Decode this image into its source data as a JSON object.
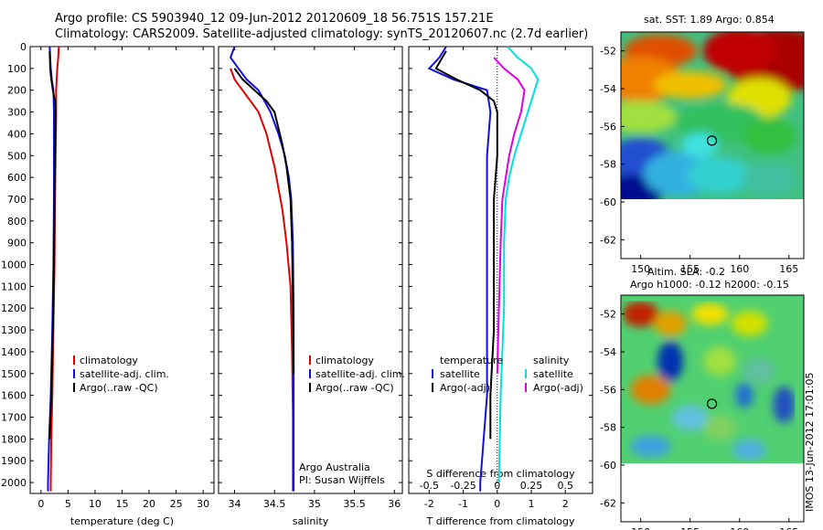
{
  "header": {
    "line1": "Argo profile: CS 5903940_12 09-Jun-2012 20120609_18 56.751S 157.21E",
    "line2": "Climatology: CARS2009. Satellite-adjusted climatology: synTS_20120607.nc (2.7d earlier)"
  },
  "colors": {
    "climatology": "#e00000",
    "satellite": "#1010e0",
    "argo": "#000000",
    "sat_salinity": "#00e0e0",
    "argo_salinity_diff": "#e000e0"
  },
  "chart_data": [
    {
      "type": "line",
      "panel": "temperature",
      "xlabel": "temperature (deg C)",
      "ylabel": "",
      "xlim": [
        -2,
        32
      ],
      "ylim": [
        2050,
        0
      ],
      "xticks": [
        0,
        5,
        10,
        15,
        20,
        25,
        30
      ],
      "yticks": [
        0,
        100,
        200,
        300,
        400,
        500,
        600,
        700,
        800,
        900,
        1000,
        1100,
        1200,
        1300,
        1400,
        1500,
        1600,
        1700,
        1800,
        1900,
        2000
      ],
      "legend": [
        "climatology",
        "satellite-adj. clim.",
        "Argo(..raw -QC)"
      ],
      "legend_location": "center-right",
      "series": [
        {
          "name": "climatology",
          "color": "#e00000",
          "points": [
            [
              3.3,
              0
            ],
            [
              3.2,
              50
            ],
            [
              3.0,
              100
            ],
            [
              2.9,
              150
            ],
            [
              2.8,
              200
            ],
            [
              2.8,
              300
            ],
            [
              2.7,
              500
            ],
            [
              2.6,
              700
            ],
            [
              2.5,
              1000
            ],
            [
              2.3,
              1300
            ],
            [
              2.1,
              1600
            ],
            [
              1.9,
              1800
            ],
            [
              1.8,
              2000
            ],
            [
              1.8,
              2040
            ]
          ]
        },
        {
          "name": "satellite-adj. clim.",
          "color": "#1010e0",
          "points": [
            [
              1.6,
              0
            ],
            [
              1.7,
              50
            ],
            [
              1.8,
              100
            ],
            [
              2.0,
              150
            ],
            [
              2.3,
              200
            ],
            [
              2.4,
              300
            ],
            [
              2.4,
              500
            ],
            [
              2.4,
              700
            ],
            [
              2.3,
              1000
            ],
            [
              2.1,
              1300
            ],
            [
              1.8,
              1600
            ],
            [
              1.5,
              1800
            ],
            [
              1.3,
              2000
            ],
            [
              1.3,
              2040
            ]
          ]
        },
        {
          "name": "Argo(..raw -QC)",
          "color": "#000000",
          "points": [
            [
              1.6,
              20
            ],
            [
              1.7,
              100
            ],
            [
              1.9,
              150
            ],
            [
              2.2,
              200
            ],
            [
              2.6,
              250
            ],
            [
              2.7,
              300
            ],
            [
              2.6,
              500
            ],
            [
              2.5,
              700
            ],
            [
              2.4,
              1000
            ],
            [
              2.2,
              1300
            ],
            [
              1.9,
              1600
            ],
            [
              1.6,
              1800
            ]
          ]
        }
      ]
    },
    {
      "type": "line",
      "panel": "salinity",
      "xlabel": "salinity",
      "ylabel": "",
      "xlim": [
        33.8,
        36.1
      ],
      "ylim": [
        2050,
        0
      ],
      "xticks": [
        34,
        34.5,
        35,
        35.5,
        36
      ],
      "legend": [
        "climatology",
        "satellite-adj. clim.",
        "Argo(..raw -QC)"
      ],
      "legend_location": "center-right",
      "annotations": [
        "Argo Australia",
        "PI: Susan Wijffels"
      ],
      "series": [
        {
          "name": "climatology",
          "color": "#e00000",
          "points": [
            [
              33.95,
              100
            ],
            [
              34.0,
              150
            ],
            [
              34.1,
              200
            ],
            [
              34.2,
              250
            ],
            [
              34.3,
              300
            ],
            [
              34.4,
              400
            ],
            [
              34.5,
              550
            ],
            [
              34.55,
              650
            ],
            [
              34.6,
              750
            ],
            [
              34.65,
              900
            ],
            [
              34.7,
              1100
            ],
            [
              34.72,
              1400
            ],
            [
              34.73,
              1700
            ],
            [
              34.73,
              2040
            ]
          ]
        },
        {
          "name": "satellite-adj. clim.",
          "color": "#1010e0",
          "points": [
            [
              34.0,
              0
            ],
            [
              33.95,
              50
            ],
            [
              34.05,
              100
            ],
            [
              34.15,
              150
            ],
            [
              34.3,
              200
            ],
            [
              34.45,
              300
            ],
            [
              34.55,
              400
            ],
            [
              34.63,
              500
            ],
            [
              34.68,
              600
            ],
            [
              34.71,
              700
            ],
            [
              34.73,
              900
            ],
            [
              34.74,
              1200
            ],
            [
              34.74,
              1600
            ],
            [
              34.74,
              1900
            ],
            [
              34.74,
              2040
            ]
          ]
        },
        {
          "name": "Argo(..raw -QC)",
          "color": "#000000",
          "points": [
            [
              34.0,
              100
            ],
            [
              34.1,
              150
            ],
            [
              34.25,
              200
            ],
            [
              34.4,
              250
            ],
            [
              34.5,
              300
            ],
            [
              34.6,
              450
            ],
            [
              34.65,
              550
            ],
            [
              34.7,
              700
            ],
            [
              34.72,
              900
            ],
            [
              34.73,
              1200
            ],
            [
              34.74,
              1500
            ]
          ]
        }
      ]
    },
    {
      "type": "line",
      "panel": "difference",
      "xlabel": "T difference from climatology",
      "xlabel2": "S difference from climatology",
      "xlim": [
        -2.6,
        2.8
      ],
      "ylim": [
        2050,
        0
      ],
      "xticks": [
        -2,
        -1,
        0,
        1,
        2
      ],
      "xticks2": [
        "-0.5",
        "-0.25",
        "0",
        "0.25",
        "0.5"
      ],
      "legend_groups": [
        {
          "title": "temperature",
          "items": [
            "satellite",
            "Argo(-adj)"
          ]
        },
        {
          "title": "salinity",
          "items": [
            "satellite",
            "Argo(-adj)"
          ]
        }
      ],
      "series": [
        {
          "name": "temperature satellite",
          "color": "#1010e0",
          "points": [
            [
              -1.5,
              0
            ],
            [
              -1.7,
              50
            ],
            [
              -2.0,
              100
            ],
            [
              -1.3,
              150
            ],
            [
              -0.3,
              200
            ],
            [
              -0.2,
              300
            ],
            [
              -0.3,
              500
            ],
            [
              -0.3,
              700
            ],
            [
              -0.3,
              1000
            ],
            [
              -0.3,
              1300
            ],
            [
              -0.3,
              1600
            ],
            [
              -0.4,
              1800
            ],
            [
              -0.5,
              2000
            ],
            [
              -0.5,
              2040
            ]
          ]
        },
        {
          "name": "temperature Argo(-adj)",
          "color": "#000000",
          "points": [
            [
              -1.5,
              20
            ],
            [
              -1.8,
              100
            ],
            [
              -1.2,
              150
            ],
            [
              -0.5,
              200
            ],
            [
              -0.1,
              250
            ],
            [
              0.0,
              300
            ],
            [
              0.0,
              500
            ],
            [
              -0.1,
              700
            ],
            [
              -0.1,
              1000
            ],
            [
              -0.1,
              1300
            ],
            [
              -0.2,
              1600
            ],
            [
              -0.2,
              1800
            ]
          ]
        },
        {
          "name": "salinity satellite",
          "color": "#00e0e0",
          "points": [
            [
              0.3,
              0
            ],
            [
              0.6,
              50
            ],
            [
              1.0,
              100
            ],
            [
              1.2,
              150
            ],
            [
              1.1,
              200
            ],
            [
              0.9,
              300
            ],
            [
              0.7,
              400
            ],
            [
              0.5,
              500
            ],
            [
              0.35,
              600
            ],
            [
              0.25,
              700
            ],
            [
              0.2,
              900
            ],
            [
              0.2,
              1200
            ],
            [
              0.1,
              1600
            ],
            [
              0.05,
              2000
            ]
          ]
        },
        {
          "name": "salinity Argo(-adj)",
          "color": "#e000e0",
          "points": [
            [
              -0.1,
              50
            ],
            [
              0.2,
              100
            ],
            [
              0.6,
              150
            ],
            [
              0.8,
              200
            ],
            [
              0.7,
              300
            ],
            [
              0.5,
              400
            ],
            [
              0.35,
              500
            ],
            [
              0.25,
              600
            ],
            [
              0.15,
              700
            ],
            [
              0.1,
              900
            ],
            [
              0.05,
              1200
            ],
            [
              0.0,
              1500
            ]
          ]
        }
      ]
    },
    {
      "type": "heatmap",
      "panel": "sst-map",
      "title": "sat. SST: 1.89 Argo: 0.854",
      "xlim": [
        148,
        166.5
      ],
      "ylim": [
        -63,
        -51
      ],
      "xticks": [
        150,
        155,
        160,
        165
      ],
      "yticks": [
        -52,
        -54,
        -56,
        -58,
        -60,
        -62
      ],
      "marker": {
        "lon": 157.21,
        "lat": -56.751
      }
    },
    {
      "type": "heatmap",
      "panel": "sla-map",
      "title": "Altim. SLA: -0.2",
      "subtitle": "Argo h1000: -0.12 h2000: -0.15",
      "xlim": [
        148,
        166.5
      ],
      "ylim": [
        -63,
        -51
      ],
      "xticks": [
        150,
        155,
        160,
        165
      ],
      "yticks": [
        -52,
        -54,
        -56,
        -58,
        -60,
        -62
      ],
      "marker": {
        "lon": 157.21,
        "lat": -56.751
      }
    }
  ],
  "footer": {
    "stamp": "IMOS 13-Jun-2012 17:01:05"
  }
}
